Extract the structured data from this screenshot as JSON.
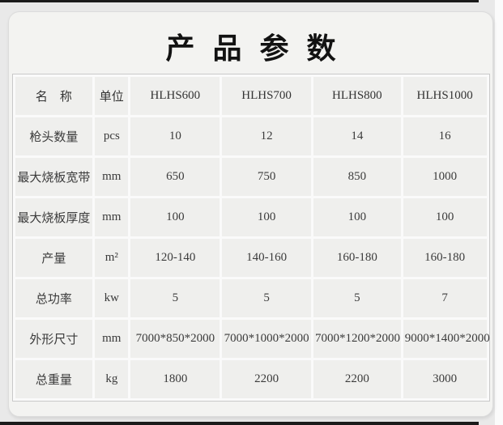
{
  "title": "产品参数",
  "table": {
    "col_headers": [
      "名　称",
      "单位",
      "HLHS600",
      "HLHS700",
      "HLHS800",
      "HLHS1000"
    ],
    "rows": [
      {
        "name": "枪头数量",
        "unit": "pcs",
        "values": [
          "10",
          "12",
          "14",
          "16"
        ]
      },
      {
        "name": "最大烧板宽带",
        "unit": "mm",
        "values": [
          "650",
          "750",
          "850",
          "1000"
        ]
      },
      {
        "name": "最大烧板厚度",
        "unit": "mm",
        "values": [
          "100",
          "100",
          "100",
          "100"
        ]
      },
      {
        "name": "产量",
        "unit": "m²",
        "values": [
          "120-140",
          "140-160",
          "160-180",
          "160-180"
        ]
      },
      {
        "name": "总功率",
        "unit": "kw",
        "values": [
          "5",
          "5",
          "5",
          "7"
        ]
      },
      {
        "name": "外形尺寸",
        "unit": "mm",
        "values": [
          "7000*850*2000",
          "7000*1000*2000",
          "7000*1200*2000",
          "9000*1400*2000"
        ]
      },
      {
        "name": "总重量",
        "unit": "kg",
        "values": [
          "1800",
          "2200",
          "2200",
          "3000"
        ]
      }
    ]
  },
  "colors": {
    "page_bg": "#e9e9e9",
    "card_bg": "#f3f3f1",
    "cell_bg": "#efefed",
    "gridline": "#fafafa",
    "table_border": "#c9c9c9",
    "text": "#3b3b3b",
    "accent_bar": "#1b1b1b"
  }
}
